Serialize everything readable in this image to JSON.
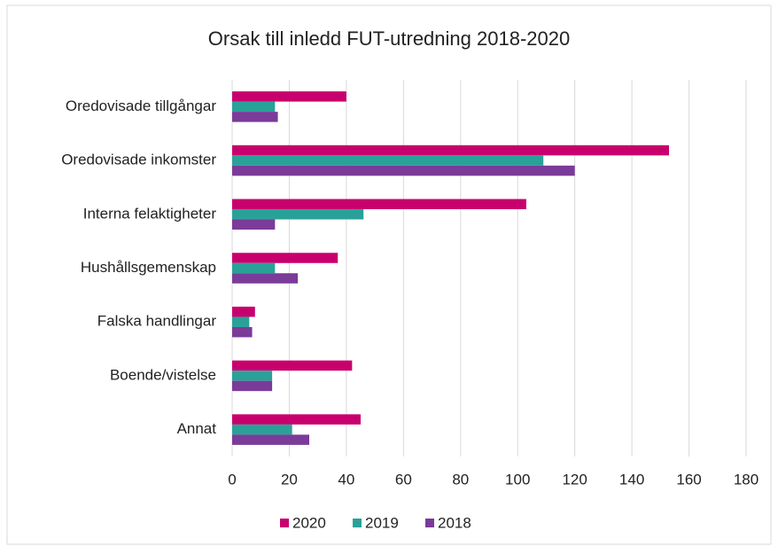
{
  "chart_data": {
    "type": "hbar",
    "title": "Orsak till inledd FUT-utredning 2018-2020",
    "categories": [
      "Oredovisade tillgångar",
      "Oredovisade inkomster",
      "Interna felaktigheter",
      "Hushållsgemenskap",
      "Falska handlingar",
      "Boende/vistelse",
      "Annat"
    ],
    "series": [
      {
        "name": "2020",
        "color": "#c8006e",
        "values": [
          40,
          153,
          103,
          37,
          8,
          42,
          45
        ]
      },
      {
        "name": "2019",
        "color": "#2aa198",
        "values": [
          15,
          109,
          46,
          15,
          6,
          14,
          21
        ]
      },
      {
        "name": "2018",
        "color": "#7a3b99",
        "values": [
          16,
          120,
          15,
          23,
          7,
          14,
          27
        ]
      }
    ],
    "xlim": [
      0,
      180
    ],
    "xticks": [
      0,
      20,
      40,
      60,
      80,
      100,
      120,
      140,
      160,
      180
    ],
    "grid": true,
    "legend": "bottom"
  }
}
